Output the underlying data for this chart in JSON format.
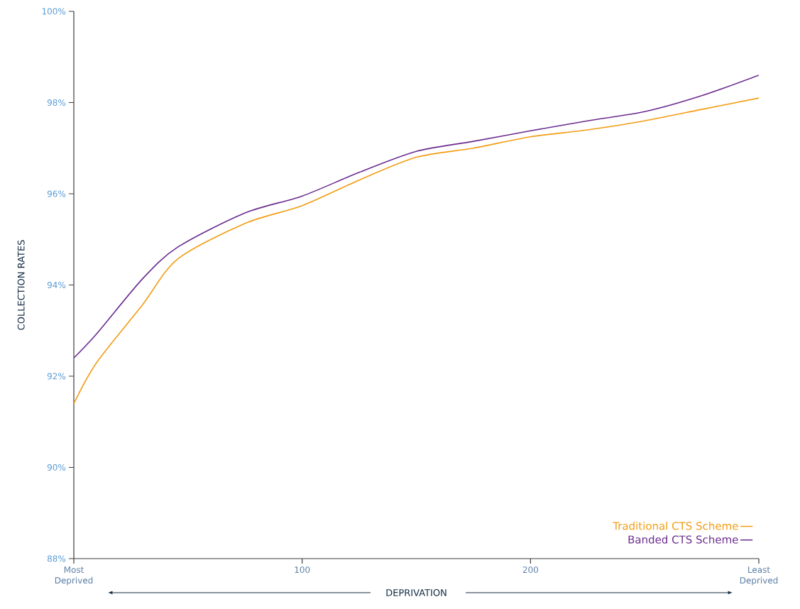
{
  "chart_data": {
    "type": "line",
    "xlabel": "DEPRIVATION",
    "ylabel": "COLLECTION RATES",
    "x": [
      0,
      10,
      30,
      45.5,
      75,
      100,
      125,
      150,
      175,
      200,
      225,
      250,
      275,
      300
    ],
    "series": [
      {
        "name": "Traditional CTS Scheme",
        "color": "#f39c12",
        "values": [
          91.4,
          92.3,
          93.56,
          94.57,
          95.35,
          95.74,
          96.3,
          96.8,
          97.0,
          97.25,
          97.4,
          97.6,
          97.85,
          98.1
        ]
      },
      {
        "name": "Banded CTS Scheme",
        "color": "#6a2c8e",
        "values": [
          92.4,
          92.93,
          94.13,
          94.83,
          95.58,
          95.95,
          96.47,
          96.93,
          97.15,
          97.38,
          97.6,
          97.8,
          98.15,
          98.6
        ]
      }
    ],
    "xlim": [
      0,
      300
    ],
    "ylim": [
      88,
      100
    ],
    "xticks": [
      {
        "value": 0,
        "label": "Most Deprived"
      },
      100,
      200,
      {
        "value": 300,
        "label": "Least Deprived"
      }
    ],
    "yticks": [
      {
        "value": 88,
        "label": "88%"
      },
      {
        "value": 90,
        "label": "90%"
      },
      {
        "value": 92,
        "label": "92%"
      },
      {
        "value": 94,
        "label": "94%"
      },
      {
        "value": 96,
        "label": "96%"
      },
      {
        "value": 98,
        "label": "98%"
      },
      {
        "value": 100,
        "label": "100%"
      }
    ],
    "legend": "bottom right",
    "grid": false
  }
}
